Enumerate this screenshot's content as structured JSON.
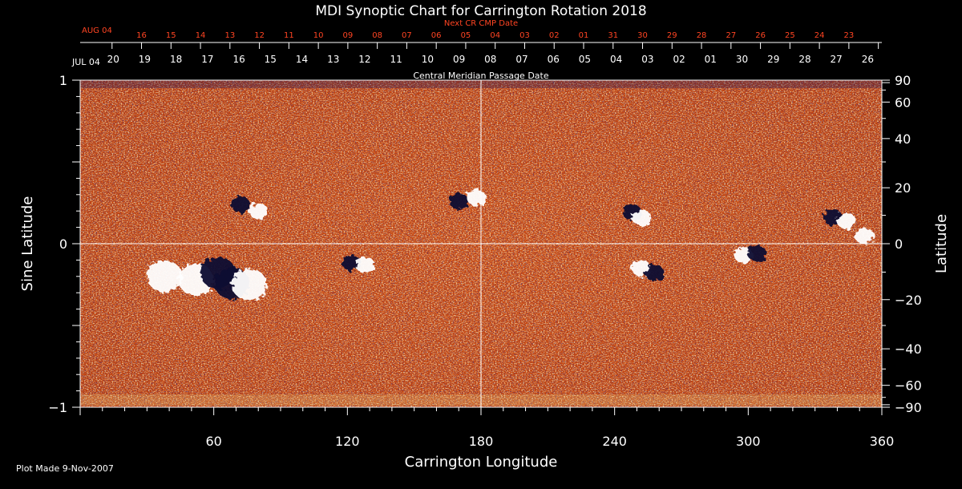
{
  "chart_data": {
    "type": "heatmap",
    "title": "MDI Synoptic Chart for Carrington Rotation 2018",
    "xlabel": "Carrington Longitude",
    "ylabel_left": "Sine Latitude",
    "ylabel_right": "Latitude",
    "xlim": [
      0,
      360
    ],
    "ylim": [
      -1,
      1
    ],
    "x_ticks": [
      60,
      120,
      180,
      240,
      300,
      360
    ],
    "y_left_ticks": [
      -1,
      0,
      1
    ],
    "y_right_ticks": [
      90,
      60,
      40,
      20,
      0,
      -20,
      -40,
      -60,
      -90
    ],
    "top_axis_label": "Central Meridian Passage Date",
    "top_axis_start": "JUL 04",
    "top_axis_dates": [
      "20",
      "19",
      "18",
      "17",
      "16",
      "15",
      "14",
      "13",
      "12",
      "11",
      "10",
      "09",
      "08",
      "07",
      "06",
      "05",
      "04",
      "03",
      "02",
      "01",
      "30",
      "29",
      "28",
      "27",
      "26"
    ],
    "next_axis_label": "Next CR CMP Date",
    "next_axis_start": "AUG 04",
    "next_axis_dates": [
      "16",
      "15",
      "14",
      "13",
      "12",
      "11",
      "10",
      "09",
      "08",
      "07",
      "06",
      "05",
      "04",
      "03",
      "02",
      "01",
      "31",
      "30",
      "29",
      "28",
      "27",
      "26",
      "25",
      "24",
      "23"
    ],
    "colors": {
      "background": "#c8460e",
      "positive": "#ffffff",
      "negative": "#0a0830",
      "accent": "#ff4422"
    },
    "active_regions": [
      {
        "lon": 38,
        "sinlat": -0.2,
        "polarity": "positive"
      },
      {
        "lon": 52,
        "sinlat": -0.22,
        "polarity": "positive"
      },
      {
        "lon": 62,
        "sinlat": -0.18,
        "polarity": "negative"
      },
      {
        "lon": 68,
        "sinlat": -0.24,
        "polarity": "negative"
      },
      {
        "lon": 76,
        "sinlat": -0.25,
        "polarity": "positive"
      },
      {
        "lon": 72,
        "sinlat": 0.24,
        "polarity": "negative"
      },
      {
        "lon": 80,
        "sinlat": 0.2,
        "polarity": "positive"
      },
      {
        "lon": 122,
        "sinlat": -0.12,
        "polarity": "negative"
      },
      {
        "lon": 128,
        "sinlat": -0.13,
        "polarity": "positive"
      },
      {
        "lon": 170,
        "sinlat": 0.26,
        "polarity": "negative"
      },
      {
        "lon": 178,
        "sinlat": 0.28,
        "polarity": "positive"
      },
      {
        "lon": 248,
        "sinlat": 0.19,
        "polarity": "negative"
      },
      {
        "lon": 252,
        "sinlat": 0.16,
        "polarity": "positive"
      },
      {
        "lon": 252,
        "sinlat": -0.15,
        "polarity": "positive"
      },
      {
        "lon": 258,
        "sinlat": -0.18,
        "polarity": "negative"
      },
      {
        "lon": 298,
        "sinlat": -0.07,
        "polarity": "positive"
      },
      {
        "lon": 304,
        "sinlat": -0.06,
        "polarity": "negative"
      },
      {
        "lon": 338,
        "sinlat": 0.16,
        "polarity": "negative"
      },
      {
        "lon": 344,
        "sinlat": 0.14,
        "polarity": "positive"
      },
      {
        "lon": 352,
        "sinlat": 0.05,
        "polarity": "positive"
      }
    ]
  },
  "footer": {
    "plot_made": "Plot Made  9-Nov-2007"
  }
}
